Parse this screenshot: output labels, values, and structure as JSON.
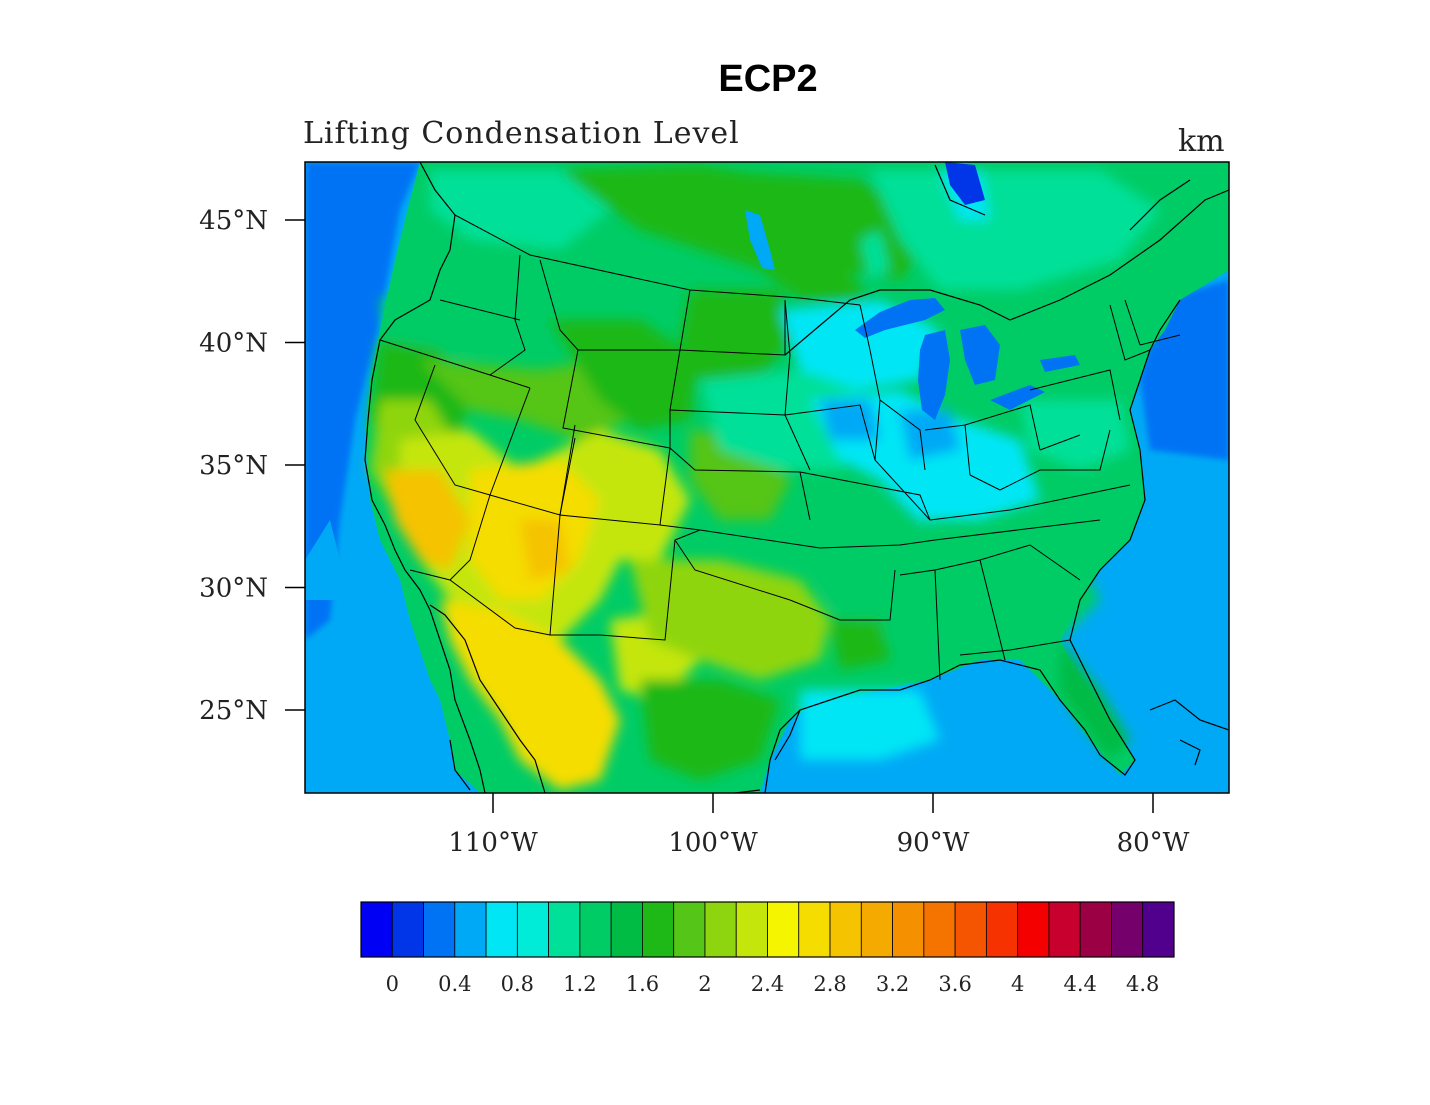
{
  "title": "ECP2",
  "left_subtitle": "Lifting Condensation Level",
  "right_subtitle": "km",
  "map": {
    "lat_ticks": [
      {
        "lat": 45,
        "label": "45°N"
      },
      {
        "lat": 40,
        "label": "40°N"
      },
      {
        "lat": 35,
        "label": "35°N"
      },
      {
        "lat": 30,
        "label": "30°N"
      },
      {
        "lat": 25,
        "label": "25°N"
      }
    ],
    "lon_ticks": [
      {
        "lon": -110,
        "label": "110°W"
      },
      {
        "lon": -100,
        "label": "100°W"
      },
      {
        "lon": -90,
        "label": "90°W"
      },
      {
        "lon": -80,
        "label": "80°W"
      }
    ]
  },
  "colorbar": {
    "colors": [
      "#0000f5",
      "#0035e8",
      "#0073f5",
      "#00a9f5",
      "#00e6f5",
      "#00ebd8",
      "#00e098",
      "#00cc66",
      "#00bb44",
      "#1eb817",
      "#55c517",
      "#8fd50f",
      "#c4e60a",
      "#f5f500",
      "#f5dd00",
      "#f5c300",
      "#f5aa00",
      "#f59000",
      "#f57400",
      "#f55500",
      "#f53200",
      "#f50000",
      "#c8002d",
      "#9b0045",
      "#75006b",
      "#50008c"
    ],
    "labels": [
      "0",
      "0.4",
      "0.8",
      "1.2",
      "1.6",
      "2",
      "2.4",
      "2.8",
      "3.2",
      "3.6",
      "4",
      "4.4",
      "4.8"
    ]
  }
}
